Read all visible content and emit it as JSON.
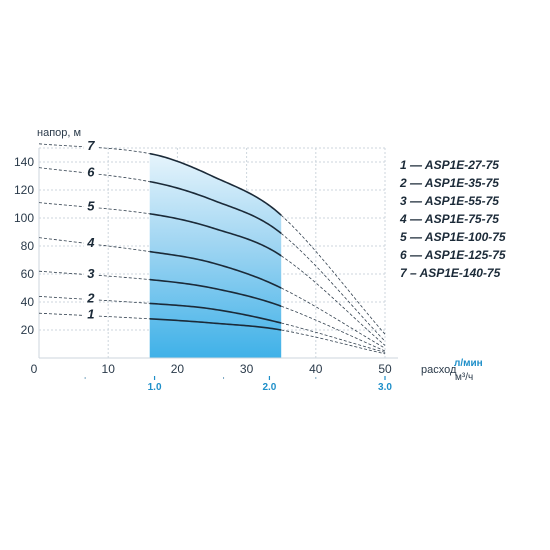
{
  "chart_data": {
    "type": "line",
    "ylabel": "напор, м",
    "xlabel": "расход",
    "x_unit_primary": "л/мин",
    "x_unit_secondary": "м³/ч",
    "xlim": [
      0,
      50
    ],
    "ylim": [
      0,
      150
    ],
    "y_ticks": [
      20,
      40,
      60,
      80,
      100,
      120,
      140
    ],
    "x_ticks": [
      0,
      10,
      20,
      30,
      40,
      50
    ],
    "x_ticks_secondary": [
      {
        "label": "1.0",
        "lpm": 16.7
      },
      {
        "label": "2.0",
        "lpm": 33.3
      },
      {
        "label": "3.0",
        "lpm": 50
      }
    ],
    "grid": true,
    "legend_position": "right",
    "operating_range": {
      "x_start": 16,
      "x_end": 35
    },
    "series": [
      {
        "name": "1 — ASP1E-27-75",
        "number": "1",
        "h0": 32,
        "points": [
          [
            16,
            28
          ],
          [
            25,
            25
          ],
          [
            35,
            20
          ]
        ],
        "end_x": 50,
        "end_y": 3
      },
      {
        "name": "2 — ASP1E-35-75",
        "number": "2",
        "h0": 44,
        "points": [
          [
            16,
            39
          ],
          [
            25,
            35
          ],
          [
            35,
            25
          ]
        ],
        "end_x": 50,
        "end_y": 4
      },
      {
        "name": "3 — ASP1E-55-75",
        "number": "3",
        "h0": 62,
        "points": [
          [
            16,
            56
          ],
          [
            25,
            50
          ],
          [
            35,
            37
          ]
        ],
        "end_x": 50,
        "end_y": 5
      },
      {
        "name": "4 — ASP1E-75-75",
        "number": "4",
        "h0": 86,
        "points": [
          [
            16,
            76
          ],
          [
            25,
            68
          ],
          [
            35,
            50
          ]
        ],
        "end_x": 50,
        "end_y": 7
      },
      {
        "name": "5 — ASP1E-100-75",
        "number": "5",
        "h0": 111,
        "points": [
          [
            16,
            103
          ],
          [
            25,
            93
          ],
          [
            35,
            73
          ]
        ],
        "end_x": 50,
        "end_y": 9
      },
      {
        "name": "6 — ASP1E-125-75",
        "number": "6",
        "h0": 136,
        "points": [
          [
            16,
            126
          ],
          [
            25,
            113
          ],
          [
            35,
            89
          ]
        ],
        "end_x": 50,
        "end_y": 12
      },
      {
        "name": "7 – ASP1E-140-75",
        "number": "7",
        "h0": 153,
        "points": [
          [
            16,
            146
          ],
          [
            25,
            130
          ],
          [
            35,
            102
          ]
        ],
        "end_x": 50,
        "end_y": 17
      }
    ]
  }
}
